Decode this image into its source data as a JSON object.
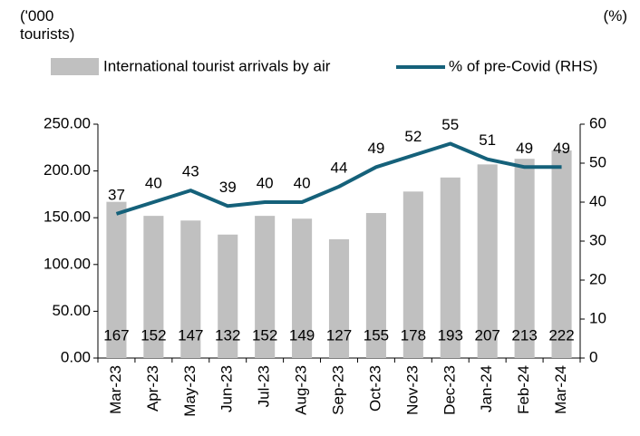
{
  "chart_data": {
    "type": "bar",
    "y_label": "('000 tourists)",
    "y2_label": "(%)",
    "categories": [
      "Mar-23",
      "Apr-23",
      "May-23",
      "Jun-23",
      "Jul-23",
      "Aug-23",
      "Sep-23",
      "Oct-23",
      "Nov-23",
      "Dec-23",
      "Jan-24",
      "Feb-24",
      "Mar-24"
    ],
    "series": [
      {
        "name": "International tourist arrivals by air",
        "color": "#c0c0c0",
        "type": "bar",
        "values": [
          167,
          152,
          147,
          132,
          152,
          149,
          127,
          155,
          178,
          193,
          207,
          213,
          222
        ]
      },
      {
        "name": "% of pre-Covid (RHS)",
        "color": "#15617a",
        "type": "line",
        "axis": "y2",
        "values": [
          37,
          40,
          43,
          39,
          40,
          40,
          44,
          49,
          52,
          55,
          51,
          49,
          49
        ]
      }
    ],
    "ylim": [
      0,
      250
    ],
    "yticks": [
      {
        "value": 0,
        "label": "0.00"
      },
      {
        "value": 50,
        "label": "50.00"
      },
      {
        "value": 100,
        "label": "100.00"
      },
      {
        "value": 150,
        "label": "150.00"
      },
      {
        "value": 200,
        "label": "200.00"
      },
      {
        "value": 250,
        "label": "250.00"
      }
    ],
    "y2lim": [
      0,
      60
    ],
    "y2ticks": [
      0,
      10,
      20,
      30,
      40,
      50,
      60
    ],
    "legend": "top"
  }
}
